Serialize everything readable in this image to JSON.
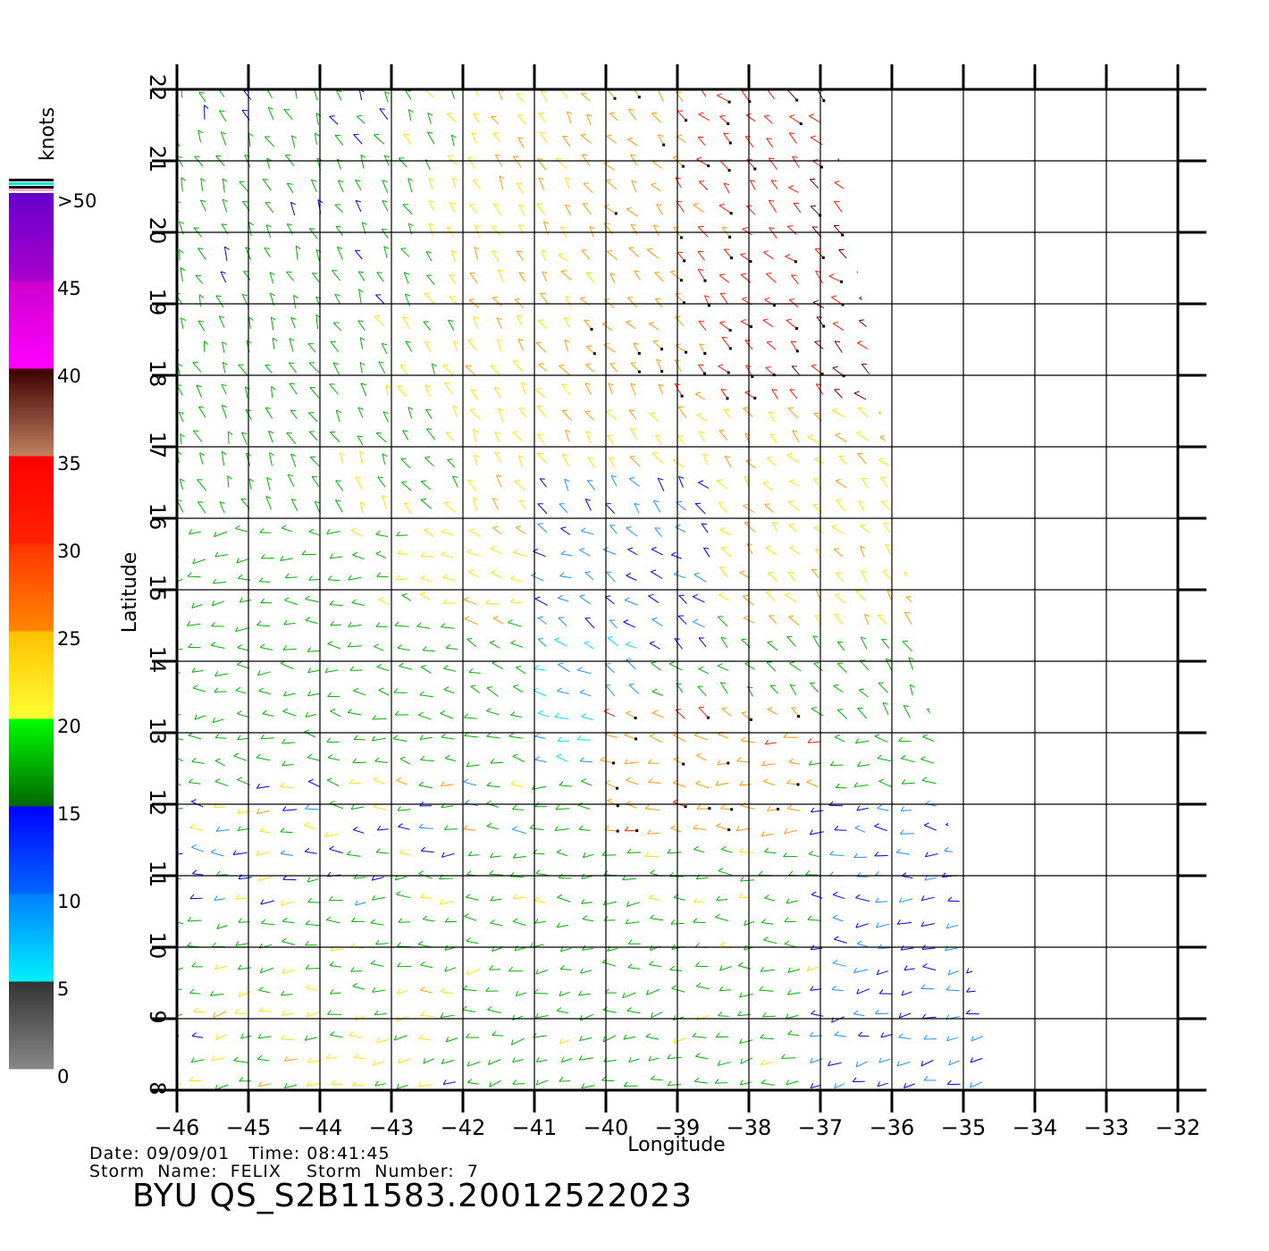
{
  "map": {
    "lon_ticks": [
      "−46",
      "−45",
      "−44",
      "−43",
      "−42",
      "−41",
      "−40",
      "−39",
      "−38",
      "−37",
      "−36",
      "−35",
      "−34",
      "−33",
      "−32"
    ],
    "lat_ticks": [
      "8",
      "9",
      "10",
      "11",
      "12",
      "13",
      "14",
      "15",
      "16",
      "17",
      "18",
      "19",
      "20",
      "21",
      "22"
    ],
    "lon_range": [
      -46,
      -32
    ],
    "lat_range": [
      8,
      22
    ],
    "xlabel": "Longitude",
    "ylabel": "Latitude",
    "grid": true,
    "swath_corners_lonlat": [
      [
        -46,
        22
      ],
      [
        -36.9,
        22
      ],
      [
        -34.6,
        8
      ],
      [
        -46,
        8
      ]
    ]
  },
  "colorbar": {
    "title": "knots",
    "labels": [
      ">50",
      "45",
      "40",
      "35",
      "30",
      "25",
      "20",
      "15",
      "10",
      "5",
      "0"
    ],
    "bands": [
      {
        "from": 0,
        "to": 5,
        "colors": [
          "#888888",
          "#333333"
        ]
      },
      {
        "from": 5,
        "to": 10,
        "colors": [
          "#00f0ff",
          "#0080ff"
        ]
      },
      {
        "from": 10,
        "to": 15,
        "colors": [
          "#0066ff",
          "#0000ff"
        ]
      },
      {
        "from": 15,
        "to": 20,
        "colors": [
          "#006600",
          "#00ff00"
        ]
      },
      {
        "from": 20,
        "to": 25,
        "colors": [
          "#ffff33",
          "#ffc000"
        ]
      },
      {
        "from": 25,
        "to": 30,
        "colors": [
          "#ff8800",
          "#ff3300"
        ]
      },
      {
        "from": 30,
        "to": 35,
        "colors": [
          "#ff2200",
          "#ff0000"
        ]
      },
      {
        "from": 35,
        "to": 40,
        "colors": [
          "#c08060",
          "#3a0000"
        ]
      },
      {
        "from": 40,
        "to": 45,
        "colors": [
          "#ff00ff",
          "#cc00cc"
        ]
      },
      {
        "from": 45,
        "to": 50,
        "colors": [
          "#aa00cc",
          "#6600cc"
        ]
      }
    ]
  },
  "info": {
    "line1": "Date: 09/09/01   Time: 08:41:45",
    "line2": "Storm  Name:  FELIX    Storm  Number:  7",
    "product": "BYU  QS_S2B11583.20012522023"
  },
  "wind_colors": {
    "cyan": "#00e0ff",
    "lightblue": "#1e90ff",
    "blue": "#0000ff",
    "green": "#00b000",
    "yellow": "#ffe000",
    "orange": "#ff9900",
    "red": "#ff1a00",
    "darkred": "#7a0000"
  }
}
